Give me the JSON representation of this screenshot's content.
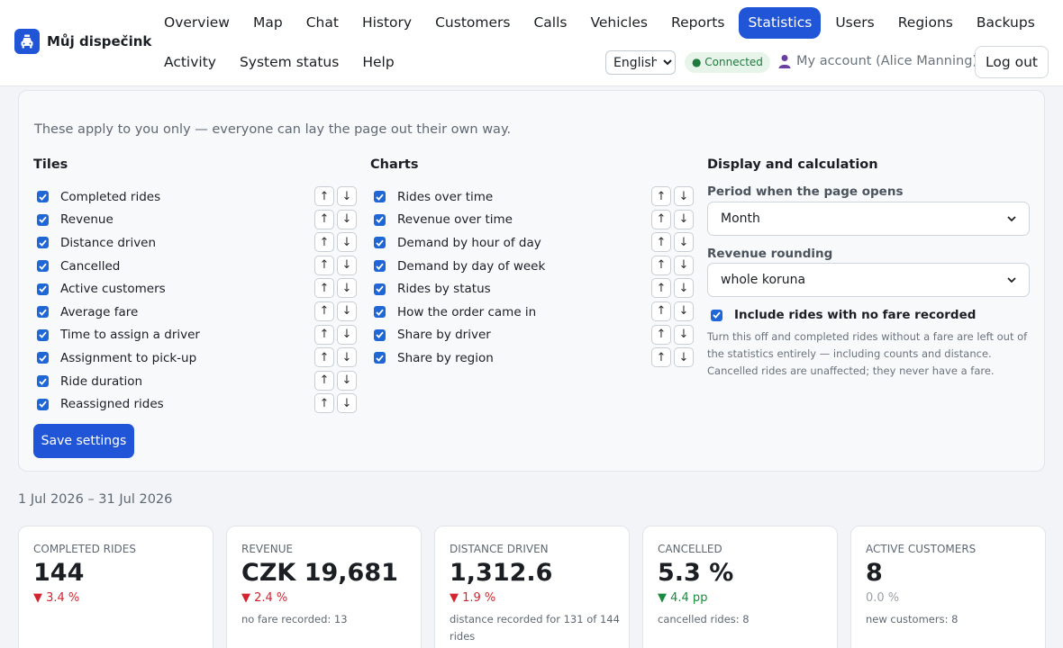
{
  "app": {
    "name": "Můj dispečink"
  },
  "nav": {
    "row1": [
      "Overview",
      "Map",
      "Chat",
      "History",
      "Customers",
      "Calls",
      "Vehicles",
      "Reports",
      "Statistics",
      "Users",
      "Regions",
      "Backups"
    ],
    "row2": [
      "Activity",
      "System status",
      "Help"
    ],
    "active": "Statistics"
  },
  "header": {
    "language": "English",
    "connection": "● Connected",
    "account": "My account (Alice Manning)",
    "logout": "Log out"
  },
  "colors": {
    "accent": "#1f55d6",
    "down": "#d1242f",
    "up": "#1a8a3e",
    "connected_bg": "#e6f4ea"
  },
  "settings": {
    "intro": "These apply to you only — everyone can lay the page out their own way.",
    "tiles_title": "Tiles",
    "tiles": [
      "Completed rides",
      "Revenue",
      "Distance driven",
      "Cancelled",
      "Active customers",
      "Average fare",
      "Time to assign a driver",
      "Assignment to pick-up",
      "Ride duration",
      "Reassigned rides"
    ],
    "charts_title": "Charts",
    "charts": [
      "Rides over time",
      "Revenue over time",
      "Demand by hour of day",
      "Demand by day of week",
      "Rides by status",
      "How the order came in",
      "Share by driver",
      "Share by region"
    ],
    "up_glyph": "↑",
    "down_glyph": "↓",
    "display_title": "Display and calculation",
    "period_label": "Period when the page opens",
    "period_value": "Month",
    "rounding_label": "Revenue rounding",
    "rounding_value": "whole koruna",
    "include_fare_label": "Include rides with no fare recorded",
    "include_fare_help": "Turn this off and completed rides without a fare are left out of the statistics entirely — including counts and distance. Cancelled rides are unaffected; they never have a fare.",
    "save_label": "Save settings"
  },
  "date_range": "1 Jul 2026 – 31 Jul 2026",
  "stat_tiles": [
    {
      "label": "Completed rides",
      "value": "144",
      "change": "▼ 3.4 %",
      "trend": "down",
      "note": ""
    },
    {
      "label": "Revenue",
      "value": "CZK 19,681",
      "change": "▼ 2.4 %",
      "trend": "down",
      "note": "no fare recorded: 13"
    },
    {
      "label": "Distance driven",
      "value": "1,312.6",
      "change": "▼ 1.9 %",
      "trend": "down",
      "note": "distance recorded for 131 of 144 rides"
    },
    {
      "label": "Cancelled",
      "value": "5.3 %",
      "change": "▼ 4.4 pp",
      "trend": "up",
      "note": "cancelled rides: 8"
    },
    {
      "label": "Active customers",
      "value": "8",
      "change": "0.0 %",
      "trend": "flat",
      "note": "new customers: 8"
    }
  ]
}
